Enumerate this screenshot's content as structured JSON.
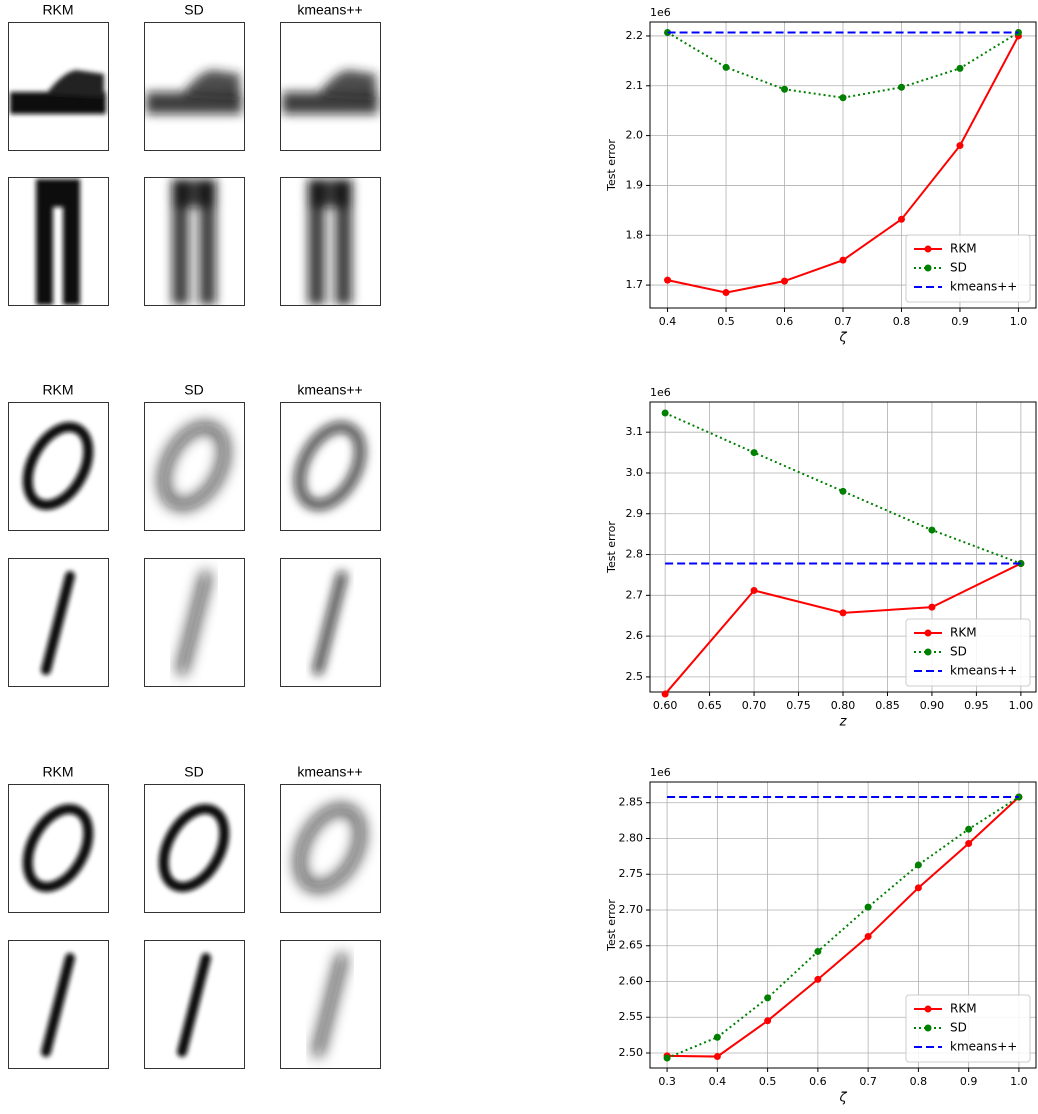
{
  "image_grids": [
    {
      "columns": [
        "RKM",
        "SD",
        "kmeans++"
      ]
    },
    {
      "columns": [
        "RKM",
        "SD",
        "kmeans++"
      ]
    },
    {
      "columns": [
        "RKM",
        "SD",
        "kmeans++"
      ]
    }
  ],
  "chart_data": [
    {
      "type": "line",
      "y_scale_label": "1e6",
      "y_label": "Test error",
      "x_label": "ζ",
      "x": [
        0.4,
        0.5,
        0.6,
        0.7,
        0.8,
        0.9,
        1.0
      ],
      "xlim": [
        0.37,
        1.03
      ],
      "xticks": [
        0.4,
        0.5,
        0.6,
        0.7,
        0.8,
        0.9,
        {
          "value": 1,
          "label": "1.0"
        }
      ],
      "ylim": [
        1.654,
        2.228
      ],
      "yticks": [
        1.7,
        1.8,
        1.9,
        {
          "value": 2,
          "label": "2.0"
        },
        2.1,
        2.2
      ],
      "grid": true,
      "legend": "lower right",
      "series": [
        {
          "name": "RKM",
          "color": "#ff0000",
          "linestyle": "solid",
          "marker": true,
          "values": [
            1.71,
            1.685,
            1.708,
            1.75,
            1.832,
            1.98,
            2.2
          ]
        },
        {
          "name": "SD",
          "color": "#008000",
          "linestyle": "dotted",
          "marker": true,
          "values": [
            2.207,
            2.137,
            2.093,
            2.076,
            2.097,
            2.135,
            2.207
          ]
        },
        {
          "name": "kmeans++",
          "color": "#0000ff",
          "linestyle": "dashed",
          "marker": false,
          "values": [
            2.207,
            2.207,
            2.207,
            2.207,
            2.207,
            2.207,
            2.207
          ]
        }
      ]
    },
    {
      "type": "line",
      "y_scale_label": "1e6",
      "y_label": "Test error",
      "x_label": "z",
      "x": [
        0.6,
        0.7,
        0.8,
        0.9,
        1.0
      ],
      "xlim": [
        0.583,
        1.017
      ],
      "xticks": [
        {
          "value": 0.6,
          "label": "0.60"
        },
        0.65,
        {
          "value": 0.7,
          "label": "0.70"
        },
        0.75,
        {
          "value": 0.8,
          "label": "0.80"
        },
        0.85,
        {
          "value": 0.9,
          "label": "0.90"
        },
        0.95,
        {
          "value": 1,
          "label": "1.00"
        }
      ],
      "ylim": [
        2.463,
        3.174
      ],
      "yticks": [
        2.5,
        2.6,
        2.7,
        2.8,
        2.9,
        {
          "value": 3,
          "label": "3.0"
        },
        3.1
      ],
      "grid": true,
      "legend": "lower right",
      "series": [
        {
          "name": "RKM",
          "color": "#ff0000",
          "linestyle": "solid",
          "marker": true,
          "values": [
            2.458,
            2.712,
            2.657,
            2.671,
            2.778
          ]
        },
        {
          "name": "SD",
          "color": "#008000",
          "linestyle": "dotted",
          "marker": true,
          "values": [
            3.147,
            3.05,
            2.955,
            2.86,
            2.778
          ]
        },
        {
          "name": "kmeans++",
          "color": "#0000ff",
          "linestyle": "dashed",
          "marker": false,
          "values": [
            2.778,
            2.778,
            2.778,
            2.778,
            2.778
          ]
        }
      ]
    },
    {
      "type": "line",
      "y_scale_label": "1e6",
      "y_label": "Test error",
      "x_label": "ζ",
      "x": [
        0.3,
        0.4,
        0.5,
        0.6,
        0.7,
        0.8,
        0.9,
        1.0
      ],
      "xlim": [
        0.266,
        1.034
      ],
      "xticks": [
        0.3,
        0.4,
        0.5,
        0.6,
        0.7,
        0.8,
        0.9,
        {
          "value": 1,
          "label": "1.0"
        }
      ],
      "ylim": [
        2.479,
        2.879
      ],
      "yticks": [
        {
          "value": 2.5,
          "label": "2.50"
        },
        2.55,
        {
          "value": 2.6,
          "label": "2.60"
        },
        2.65,
        {
          "value": 2.7,
          "label": "2.70"
        },
        2.75,
        {
          "value": 2.8,
          "label": "2.80"
        },
        2.85
      ],
      "grid": true,
      "legend": "lower right",
      "series": [
        {
          "name": "RKM",
          "color": "#ff0000",
          "linestyle": "solid",
          "marker": true,
          "values": [
            2.496,
            2.495,
            2.545,
            2.603,
            2.663,
            2.731,
            2.793,
            2.858
          ]
        },
        {
          "name": "SD",
          "color": "#008000",
          "linestyle": "dotted",
          "marker": true,
          "values": [
            2.493,
            2.522,
            2.577,
            2.642,
            2.704,
            2.763,
            2.813,
            2.858
          ]
        },
        {
          "name": "kmeans++",
          "color": "#0000ff",
          "linestyle": "dashed",
          "marker": false,
          "values": [
            2.858,
            2.858,
            2.858,
            2.858,
            2.858,
            2.858,
            2.858,
            2.858
          ]
        }
      ]
    }
  ]
}
